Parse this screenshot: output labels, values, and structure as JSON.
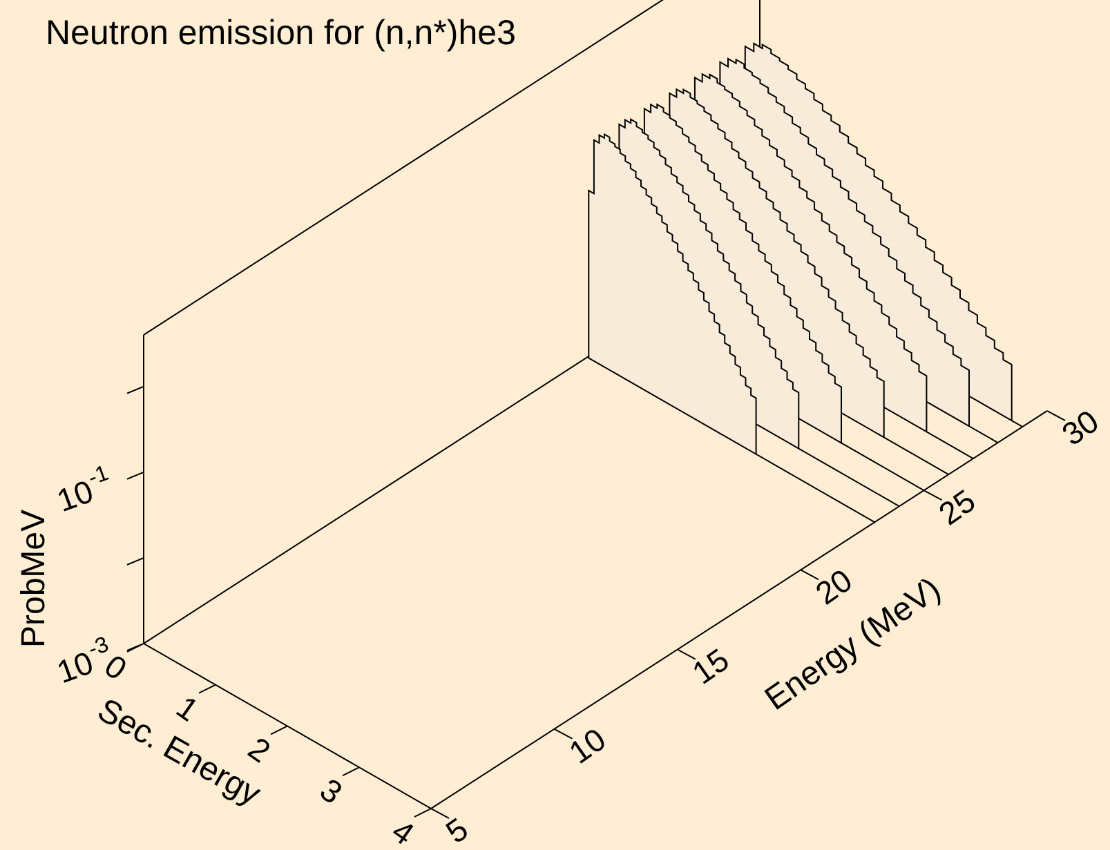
{
  "colors": {
    "background": "#ffeed3",
    "fill": "#f9ebd9",
    "line": "#000000"
  },
  "chart_data": {
    "type": "area",
    "title": "Neutron emission for (n,n*)he3",
    "xlabel": "Energy (MeV)",
    "ylabel": "Sec. Energy",
    "zlabel": "ProbMeV",
    "x_ticks": [
      {
        "value": 5,
        "label": "5"
      },
      {
        "value": 10,
        "label": "10"
      },
      {
        "value": 15,
        "label": "15"
      },
      {
        "value": 20,
        "label": "20"
      },
      {
        "value": 25,
        "label": "25"
      },
      {
        "value": 30,
        "label": "30"
      }
    ],
    "y_ticks": [
      {
        "value": 0,
        "label": "0"
      },
      {
        "value": 1,
        "label": "1"
      },
      {
        "value": 2,
        "label": "2"
      },
      {
        "value": 3,
        "label": "3"
      },
      {
        "value": 4,
        "label": "4"
      }
    ],
    "z_ticks": [
      {
        "value": 0.001,
        "base": "10",
        "exp": "-3"
      },
      {
        "value": 0.1,
        "base": "10",
        "exp": "-1"
      }
    ],
    "z_minor_ticks": [
      0.01,
      1.0
    ],
    "xlim": [
      5,
      30
    ],
    "ylim": [
      0,
      4
    ],
    "zlim": [
      0.001,
      4.0
    ],
    "zscale": "log",
    "series": [
      {
        "incident_energy": 23.0,
        "sec_energy": [
          0.02,
          2.35
        ],
        "prob": [
          0.09,
          0.38,
          0.47,
          0.52,
          0.47,
          0.44,
          0.4,
          0.35,
          0.31,
          0.265,
          0.225,
          0.195,
          0.165,
          0.14,
          0.12,
          0.1,
          0.085,
          0.07,
          0.058,
          0.049,
          0.041,
          0.034,
          0.028,
          0.0225,
          0.0185,
          0.015,
          0.0122,
          0.01,
          0.0081,
          0.0066,
          0.0054,
          0.0045
        ]
      },
      {
        "incident_energy": 24.0,
        "sec_energy": [
          0.02,
          2.6
        ],
        "prob": [
          0.09,
          0.38,
          0.47,
          0.52,
          0.47,
          0.44,
          0.4,
          0.35,
          0.31,
          0.265,
          0.225,
          0.195,
          0.165,
          0.14,
          0.12,
          0.1,
          0.085,
          0.07,
          0.058,
          0.049,
          0.041,
          0.034,
          0.028,
          0.0225,
          0.0185,
          0.015,
          0.0122,
          0.01,
          0.0081,
          0.0066,
          0.0054,
          0.0045
        ]
      },
      {
        "incident_energy": 25.0,
        "sec_energy": [
          0.02,
          2.85
        ],
        "prob": [
          0.09,
          0.38,
          0.47,
          0.52,
          0.47,
          0.44,
          0.4,
          0.35,
          0.31,
          0.265,
          0.225,
          0.195,
          0.165,
          0.14,
          0.12,
          0.1,
          0.085,
          0.07,
          0.058,
          0.049,
          0.041,
          0.034,
          0.028,
          0.0225,
          0.0185,
          0.015,
          0.0122,
          0.01,
          0.0081,
          0.0066,
          0.0054,
          0.0045
        ]
      },
      {
        "incident_energy": 26.0,
        "sec_energy": [
          0.02,
          3.1
        ],
        "prob": [
          0.09,
          0.38,
          0.47,
          0.52,
          0.47,
          0.44,
          0.4,
          0.35,
          0.31,
          0.265,
          0.225,
          0.195,
          0.165,
          0.14,
          0.12,
          0.1,
          0.085,
          0.07,
          0.058,
          0.049,
          0.041,
          0.034,
          0.028,
          0.0225,
          0.0185,
          0.015,
          0.0122,
          0.01,
          0.0081,
          0.0066,
          0.0054,
          0.0045
        ]
      },
      {
        "incident_energy": 27.0,
        "sec_energy": [
          0.02,
          3.35
        ],
        "prob": [
          0.09,
          0.38,
          0.47,
          0.52,
          0.47,
          0.44,
          0.4,
          0.35,
          0.31,
          0.265,
          0.225,
          0.195,
          0.165,
          0.14,
          0.12,
          0.1,
          0.085,
          0.07,
          0.058,
          0.049,
          0.041,
          0.034,
          0.028,
          0.0225,
          0.0185,
          0.015,
          0.0122,
          0.01,
          0.0081,
          0.0066,
          0.0054,
          0.0045
        ]
      },
      {
        "incident_energy": 28.0,
        "sec_energy": [
          0.02,
          3.6
        ],
        "prob": [
          0.09,
          0.38,
          0.47,
          0.52,
          0.47,
          0.44,
          0.4,
          0.35,
          0.31,
          0.265,
          0.225,
          0.195,
          0.165,
          0.14,
          0.12,
          0.1,
          0.085,
          0.07,
          0.058,
          0.049,
          0.041,
          0.034,
          0.028,
          0.0225,
          0.0185,
          0.015,
          0.0122,
          0.01,
          0.0081,
          0.0066,
          0.0054,
          0.0045
        ]
      },
      {
        "incident_energy": 29.0,
        "sec_energy": [
          0.02,
          3.85
        ],
        "prob": [
          0.09,
          0.38,
          0.47,
          0.52,
          0.47,
          0.44,
          0.4,
          0.35,
          0.31,
          0.265,
          0.225,
          0.195,
          0.165,
          0.14,
          0.12,
          0.1,
          0.085,
          0.07,
          0.058,
          0.049,
          0.041,
          0.034,
          0.028,
          0.0225,
          0.0185,
          0.015,
          0.0122,
          0.01,
          0.0081,
          0.0066,
          0.0054,
          0.0045
        ]
      }
    ],
    "grid": false,
    "legend": "none"
  }
}
